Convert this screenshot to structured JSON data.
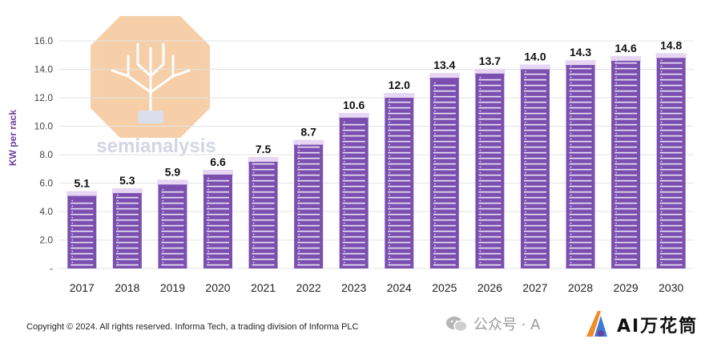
{
  "chart_data": {
    "type": "bar",
    "title": "",
    "xlabel": "",
    "ylabel": "KW per rack",
    "ylim": [
      0,
      16
    ],
    "yticks": [
      "-",
      "2.0",
      "4.0",
      "6.0",
      "8.0",
      "10.0",
      "12.0",
      "14.0",
      "16.0"
    ],
    "categories": [
      "2017",
      "2018",
      "2019",
      "2020",
      "2021",
      "2022",
      "2023",
      "2024",
      "2025",
      "2026",
      "2027",
      "2028",
      "2029",
      "2030"
    ],
    "values": [
      5.1,
      5.3,
      5.9,
      6.6,
      7.5,
      8.7,
      10.6,
      12.0,
      13.4,
      13.7,
      14.0,
      14.3,
      14.6,
      14.8
    ],
    "value_labels": [
      "5.1",
      "5.3",
      "5.9",
      "6.6",
      "7.5",
      "8.7",
      "10.6",
      "12.0",
      "13.4",
      "13.7",
      "14.0",
      "14.3",
      "14.6",
      "14.8"
    ],
    "grid": true,
    "colors": {
      "bar": "#7b4fb0",
      "bar_top": "#e6d6f3",
      "slot": "#ffffff",
      "grid": "#e3e3e3"
    }
  },
  "watermark": {
    "text": "semianalysis",
    "colors": {
      "octagon": "#f3c08d",
      "text": "#c3c8dc"
    }
  },
  "footer": {
    "copyright": "Copyright © 2024. All rights reserved. Informa Tech, a trading division of Informa PLC",
    "wechat_text": "公众号 · A",
    "brand_text": "AI万花筒"
  }
}
